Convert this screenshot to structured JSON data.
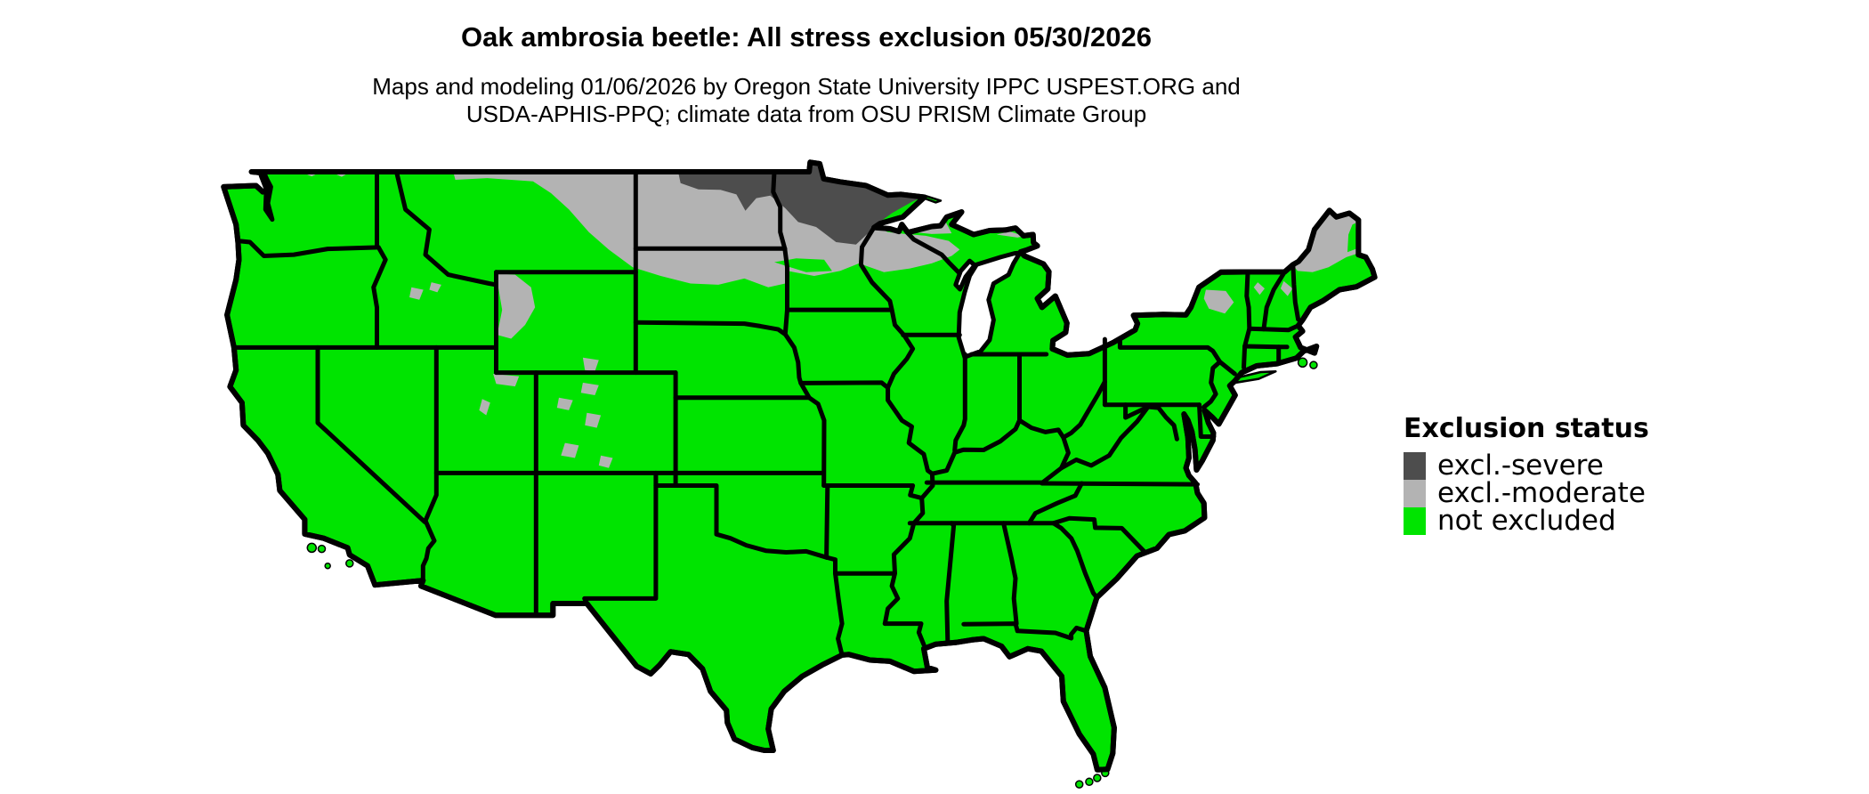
{
  "title": "Oak ambrosia beetle: All stress exclusion 05/30/2026",
  "subtitle": {
    "line1": "Maps and modeling 01/06/2026 by Oregon State University IPPC USPEST.ORG and",
    "line2": "USDA-APHIS-PPQ; climate data from OSU PRISM Climate Group"
  },
  "legend": {
    "title": "Exclusion status",
    "items": [
      {
        "label": "excl.-severe",
        "color": "#4d4d4d"
      },
      {
        "label": "excl.-moderate",
        "color": "#b3b3b3"
      },
      {
        "label": "not excluded",
        "color": "#00e400"
      }
    ]
  },
  "map": {
    "name": "Contiguous United States exclusion status map",
    "border_color": "#000000",
    "water_color": "#ffffff",
    "regions": [
      {
        "status": "excl.-severe",
        "areas": "northern North Dakota and northern Minnesota"
      },
      {
        "status": "excl.-moderate",
        "areas": "northern Montana border, band across the Dakotas, Minnesota, northern Wisconsin and upper Michigan; Rocky Mountain high country in Wyoming, Utah, Colorado and Idaho; Adirondacks; northern New Hampshire, Vermont and Maine"
      },
      {
        "status": "not excluded",
        "areas": "remainder of the contiguous United States"
      }
    ]
  }
}
